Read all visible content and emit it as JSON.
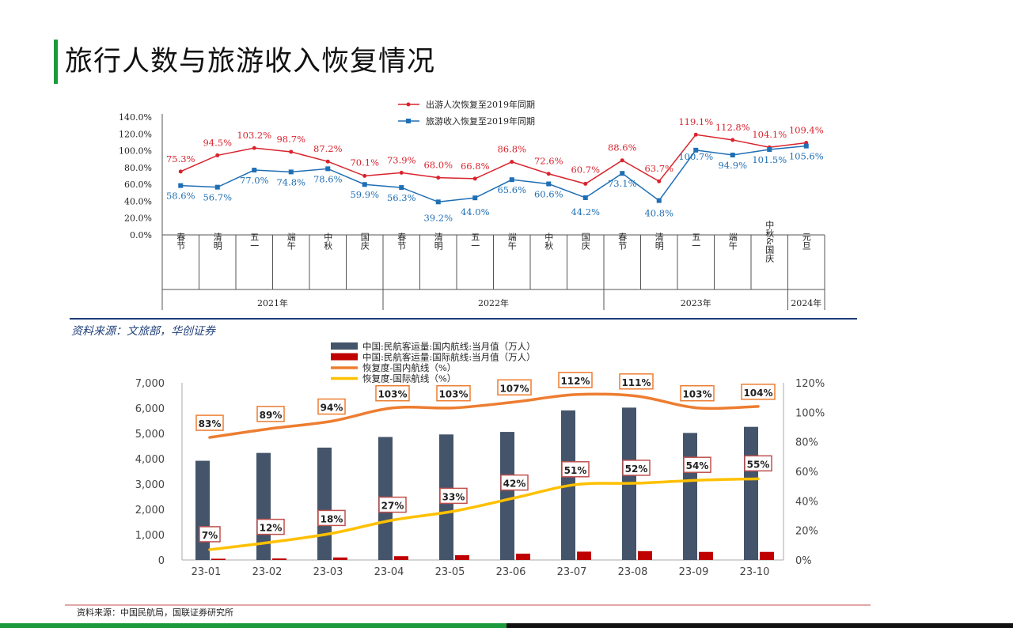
{
  "page": {
    "title": "旅行人数与旅游收入恢复情况",
    "source1": "资料来源：文旅部，华创证券",
    "source2": "资料来源：中国民航局，国联证券研究所"
  },
  "chart_data": [
    {
      "type": "line",
      "y_ticks": [
        "140.0%",
        "120.0%",
        "100.0%",
        "80.0%",
        "60.0%",
        "40.0%",
        "20.0%",
        "0.0%"
      ],
      "ylim": [
        0,
        140
      ],
      "categories": [
        "春节",
        "清明",
        "五一",
        "端午",
        "中秋",
        "国庆",
        "春节",
        "清明",
        "五一",
        "端午",
        "中秋",
        "国庆",
        "春节",
        "清明",
        "五一",
        "端午",
        "中秋&国庆",
        "元旦"
      ],
      "groups": [
        {
          "label": "2021年",
          "count": 6
        },
        {
          "label": "2022年",
          "count": 6
        },
        {
          "label": "2023年",
          "count": 5
        },
        {
          "label": "2024年",
          "count": 1
        }
      ],
      "series": [
        {
          "name": "出游人次恢复至2019年同期",
          "color": "#d9232d",
          "values": [
            75.3,
            94.5,
            103.2,
            98.7,
            87.2,
            70.1,
            73.9,
            68.0,
            66.8,
            86.8,
            72.6,
            60.7,
            88.6,
            63.7,
            119.1,
            112.8,
            104.1,
            109.4
          ],
          "labels": [
            "75.3%",
            "94.5%",
            "103.2%",
            "98.7%",
            "87.2%",
            "70.1%",
            "73.9%",
            "68.0%",
            "66.8%",
            "86.8%",
            "72.6%",
            "60.7%",
            "88.6%",
            "63.7%",
            "119.1%",
            "112.8%",
            "104.1%",
            "109.4%"
          ]
        },
        {
          "name": "旅游收入恢复至2019年同期",
          "color": "#1f6fb5",
          "values": [
            58.6,
            56.7,
            77.0,
            74.8,
            78.6,
            59.9,
            56.3,
            39.2,
            44.0,
            65.6,
            60.6,
            44.2,
            73.1,
            40.8,
            100.7,
            94.9,
            101.5,
            105.6
          ],
          "labels": [
            "58.6%",
            "56.7%",
            "77.0%",
            "74.8%",
            "78.6%",
            "59.9%",
            "56.3%",
            "39.2%",
            "44.0%",
            "65.6%",
            "60.6%",
            "44.2%",
            "73.1%",
            "40.8%",
            "100.7%",
            "94.9%",
            "101.5%",
            "105.6%"
          ]
        }
      ]
    },
    {
      "type": "bar",
      "categories": [
        "23-01",
        "23-02",
        "23-03",
        "23-04",
        "23-05",
        "23-06",
        "23-07",
        "23-08",
        "23-09",
        "23-10"
      ],
      "y_ticks": [
        "7,000",
        "6,000",
        "5,000",
        "4,000",
        "3,000",
        "2,000",
        "1,000",
        "0"
      ],
      "y2_ticks": [
        "120%",
        "100%",
        "80%",
        "60%",
        "40%",
        "20%",
        "0%"
      ],
      "ylim": [
        0,
        7000
      ],
      "y2lim": [
        0,
        120
      ],
      "series": [
        {
          "name": "中国:民航客运量:国内航线:当月值（万人）",
          "type": "bar",
          "color": "#44546a",
          "values": [
            3920,
            4230,
            4440,
            4860,
            4960,
            5060,
            5910,
            6020,
            5020,
            5260
          ]
        },
        {
          "name": "中国:民航客运量:国际航线:当月值（万人）",
          "type": "bar",
          "color": "#c00000",
          "values": [
            50,
            60,
            100,
            150,
            190,
            250,
            330,
            350,
            320,
            320
          ]
        },
        {
          "name": "恢复度-国内航线（%）",
          "type": "line",
          "axis": "right",
          "color": "#ed7d31",
          "values": [
            83,
            89,
            94,
            103,
            103,
            107,
            112,
            111,
            103,
            104
          ],
          "labels": [
            "83%",
            "89%",
            "94%",
            "103%",
            "103%",
            "107%",
            "112%",
            "111%",
            "103%",
            "104%"
          ]
        },
        {
          "name": "恢复度-国际航线（%）",
          "type": "line",
          "axis": "right",
          "color": "#ffc000",
          "values": [
            7,
            12,
            18,
            27,
            33,
            42,
            51,
            52,
            54,
            55
          ],
          "labels": [
            "7%",
            "12%",
            "18%",
            "27%",
            "33%",
            "42%",
            "51%",
            "52%",
            "54%",
            "55%"
          ]
        }
      ]
    }
  ]
}
